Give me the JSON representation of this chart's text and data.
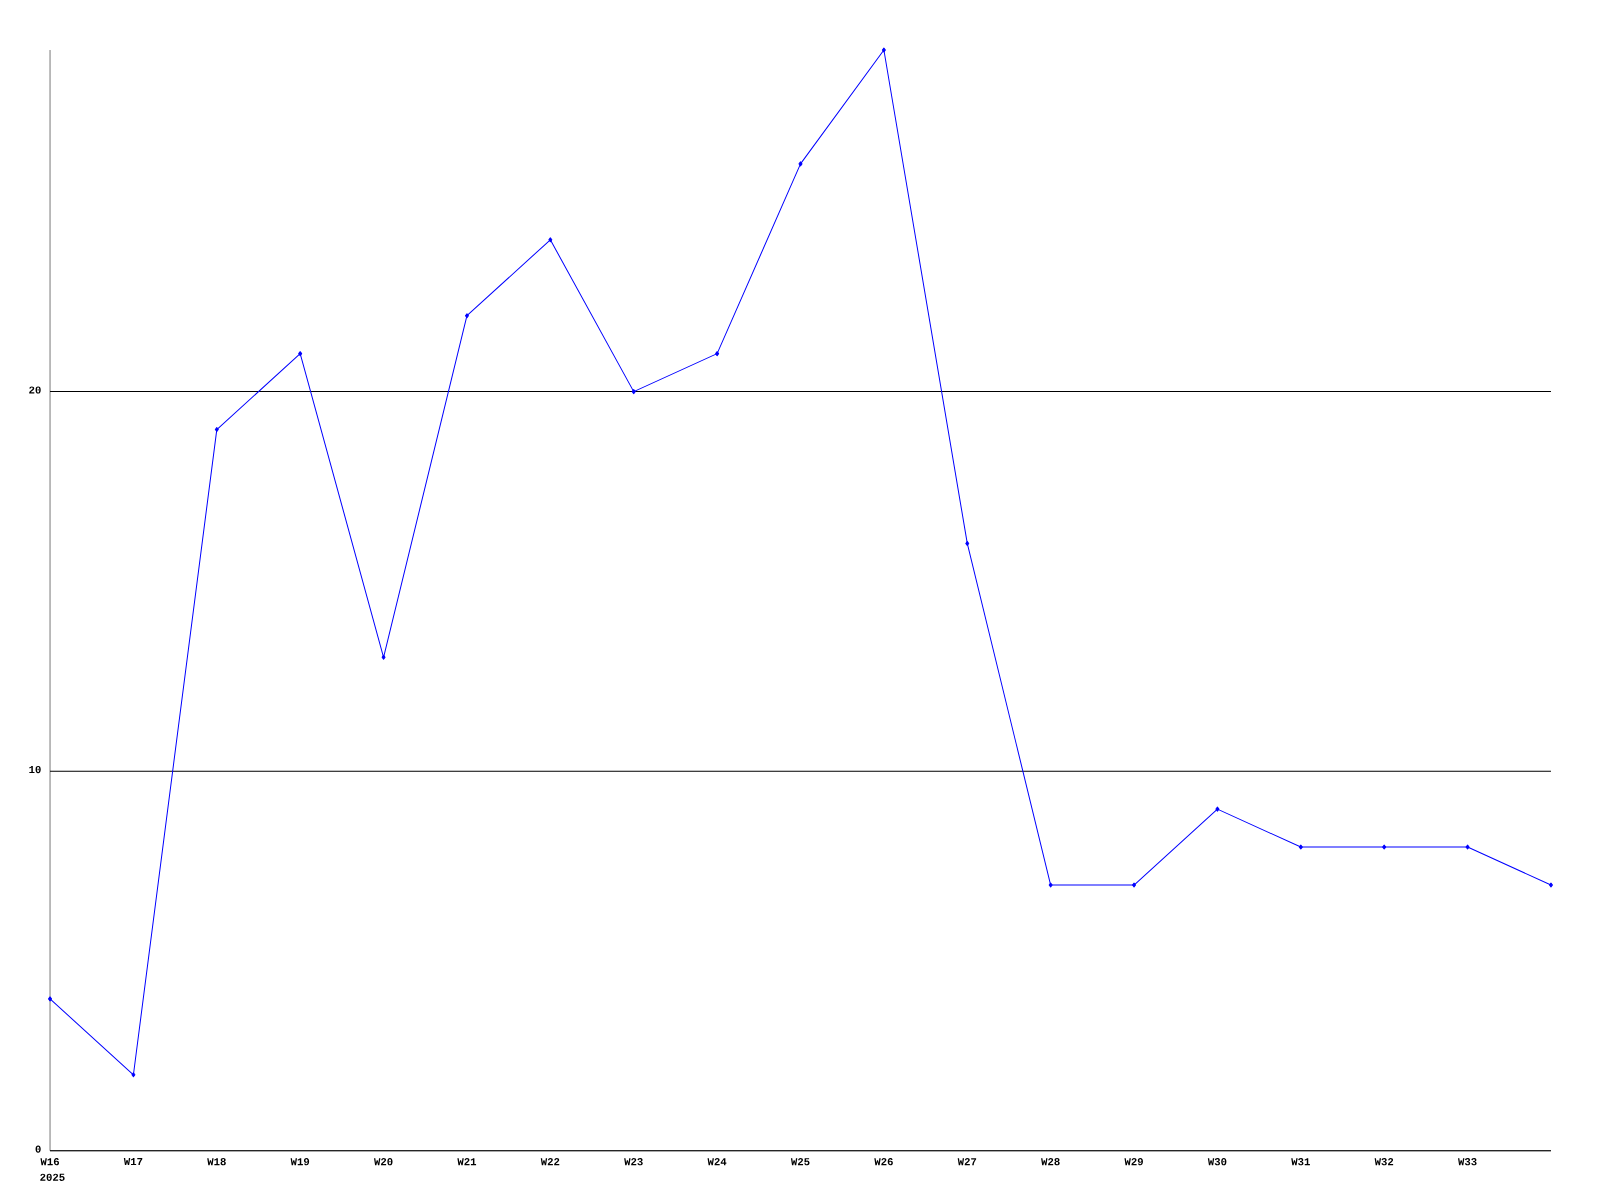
{
  "chart_data": {
    "type": "line",
    "categories": [
      "W16",
      "W17",
      "W18",
      "W19",
      "W20",
      "W21",
      "W22",
      "W23",
      "W24",
      "W25",
      "W26",
      "W27",
      "W28",
      "W29",
      "W30",
      "W31",
      "W32",
      "W33",
      null
    ],
    "series": [
      {
        "color": "#0000ff",
        "values": [
          4,
          2,
          19,
          21,
          13,
          22,
          24,
          20,
          21,
          26,
          29,
          16,
          7,
          7,
          9,
          8,
          8,
          8,
          7
        ]
      }
    ],
    "ylim": [
      0,
      29
    ],
    "yticks": [
      0,
      10,
      20
    ],
    "grid": "y",
    "marker": "diamond",
    "line_style": "solid",
    "annotations": [
      "2025"
    ]
  }
}
